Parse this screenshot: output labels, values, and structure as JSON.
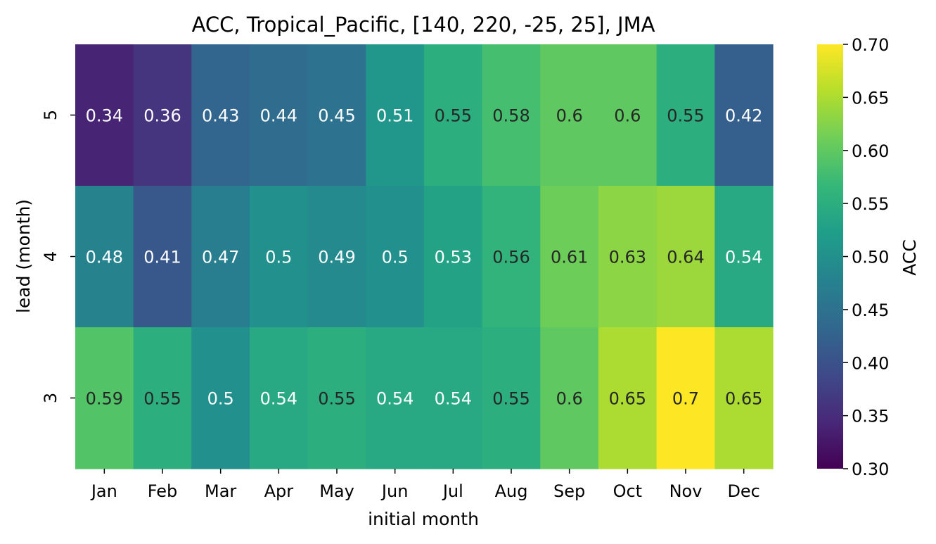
{
  "chart_data": {
    "type": "heatmap",
    "title": "ACC, Tropical_Pacific, [140, 220, -25, 25], JMA",
    "xlabel": "initial month",
    "ylabel": "lead (month)",
    "colorbar_label": "ACC",
    "colormap": "viridis",
    "vmin": 0.3,
    "vmax": 0.7,
    "x_categories": [
      "Jan",
      "Feb",
      "Mar",
      "Apr",
      "May",
      "Jun",
      "Jul",
      "Aug",
      "Sep",
      "Oct",
      "Nov",
      "Dec"
    ],
    "y_categories": [
      "5",
      "4",
      "3"
    ],
    "values": [
      [
        0.34,
        0.36,
        0.43,
        0.44,
        0.45,
        0.51,
        0.55,
        0.58,
        0.6,
        0.6,
        0.55,
        0.42
      ],
      [
        0.48,
        0.41,
        0.47,
        0.5,
        0.49,
        0.5,
        0.53,
        0.56,
        0.61,
        0.63,
        0.64,
        0.54
      ],
      [
        0.59,
        0.55,
        0.5,
        0.54,
        0.55,
        0.54,
        0.54,
        0.55,
        0.6,
        0.65,
        0.7,
        0.65
      ]
    ],
    "colorbar_ticks": [
      "0.30",
      "0.35",
      "0.40",
      "0.45",
      "0.50",
      "0.55",
      "0.60",
      "0.65",
      "0.70"
    ]
  }
}
